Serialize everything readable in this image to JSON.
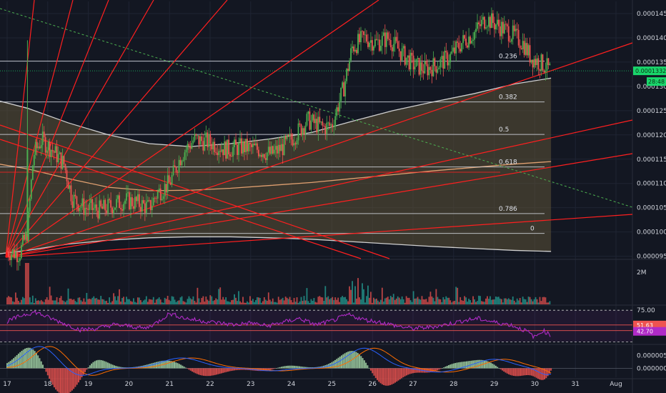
{
  "colors": {
    "background": "#131722",
    "grid": "#1f2433",
    "up": "#26a69a",
    "upBright": "#4caf50",
    "down": "#ef5350",
    "fib": "#d1d4dc",
    "fan": "#ff1f1f",
    "trend": "#4caf50",
    "maWhite": "#cfcfcf",
    "maOrange": "#e0a070",
    "fill": "#5c5236",
    "rsi": "#b02bc7",
    "macd": "#2962ff",
    "signal": "#ff6d00",
    "priceTag": "#19d66b"
  },
  "chart_data": [
    {
      "type": "candlestick",
      "panel": "price",
      "x_axis_labels": [
        "17",
        "18",
        "19",
        "20",
        "21",
        "22",
        "23",
        "24",
        "25",
        "26",
        "27",
        "28",
        "29",
        "30",
        "31",
        "Aug"
      ],
      "y_ticks": [
        "0.0001450",
        "0.0001400",
        "0.0001350",
        "0.0001300",
        "0.0001250",
        "0.0001200",
        "0.0001150",
        "0.0001100",
        "0.0001050",
        "0.0001000",
        "0.0000950"
      ],
      "ylim": [
        9.45e-05,
        0.0001475
      ],
      "price_path": [
        [
          17.0,
          9.6e-05
        ],
        [
          17.3,
          9.55e-05
        ],
        [
          17.5,
          0.0001
        ],
        [
          17.65,
          0.000116
        ],
        [
          17.85,
          0.000119
        ],
        [
          18.1,
          0.000117
        ],
        [
          18.4,
          0.000114
        ],
        [
          18.6,
          0.000107
        ],
        [
          18.9,
          0.000105
        ],
        [
          19.3,
          0.0001045
        ],
        [
          19.6,
          0.0001055
        ],
        [
          19.9,
          0.0001065
        ],
        [
          20.2,
          0.000106
        ],
        [
          20.5,
          0.000105
        ],
        [
          20.7,
          0.000108
        ],
        [
          21.0,
          0.00011
        ],
        [
          21.3,
          0.000116
        ],
        [
          21.6,
          0.000119
        ],
        [
          22.0,
          0.0001185
        ],
        [
          22.4,
          0.000117
        ],
        [
          22.8,
          0.0001175
        ],
        [
          23.2,
          0.000117
        ],
        [
          23.5,
          0.000116
        ],
        [
          23.8,
          0.0001175
        ],
        [
          24.1,
          0.00012
        ],
        [
          24.4,
          0.000123
        ],
        [
          24.8,
          0.0001215
        ],
        [
          25.0,
          0.000122
        ],
        [
          25.3,
          0.00013
        ],
        [
          25.5,
          0.000138
        ],
        [
          25.8,
          0.00014
        ],
        [
          26.1,
          0.000139
        ],
        [
          26.4,
          0.00014
        ],
        [
          26.7,
          0.000137
        ],
        [
          27.0,
          0.0001345
        ],
        [
          27.3,
          0.0001335
        ],
        [
          27.6,
          0.0001345
        ],
        [
          27.9,
          0.000136
        ],
        [
          28.2,
          0.000139
        ],
        [
          28.5,
          0.000141
        ],
        [
          28.8,
          0.000144
        ],
        [
          29.1,
          0.0001425
        ],
        [
          29.4,
          0.000141
        ],
        [
          29.7,
          0.000139
        ],
        [
          29.9,
          0.000136
        ],
        [
          30.2,
          0.0001345
        ],
        [
          30.4,
          0.0001332
        ]
      ],
      "last_price_label": "0.0001332",
      "countdown_label": "28:48",
      "fib_levels": [
        {
          "label": "0.236",
          "value": 0.0001352
        },
        {
          "label": "0.382",
          "value": 0.0001268
        },
        {
          "label": "0.5",
          "value": 0.0001201
        },
        {
          "label": "0.618",
          "value": 0.0001134
        },
        {
          "label": "0.786",
          "value": 0.0001038
        },
        {
          "label": "0",
          "value": 9.97e-05
        }
      ],
      "moving_averages": [
        {
          "color": "#cfcfcf",
          "points": [
            [
              16.8,
              0.000127
            ],
            [
              17.5,
              0.0001255
            ],
            [
              18.5,
              0.0001225
            ],
            [
              19.5,
              0.00012
            ],
            [
              20.5,
              0.0001182
            ],
            [
              21.5,
              0.0001176
            ],
            [
              22.5,
              0.0001182
            ],
            [
              23.5,
              0.0001192
            ],
            [
              24.5,
              0.0001205
            ],
            [
              25.5,
              0.0001228
            ],
            [
              26.5,
              0.000125
            ],
            [
              27.5,
              0.0001268
            ],
            [
              28.5,
              0.0001285
            ],
            [
              29.5,
              0.0001305
            ],
            [
              30.4,
              0.0001317
            ]
          ]
        },
        {
          "color": "#e0a070",
          "points": [
            [
              16.8,
              0.000114
            ],
            [
              17.5,
              0.000113
            ],
            [
              18.5,
              0.000111
            ],
            [
              19.5,
              0.0001092
            ],
            [
              20.5,
              0.0001085
            ],
            [
              21.5,
              0.0001086
            ],
            [
              22.5,
              0.000109
            ],
            [
              23.5,
              0.0001096
            ],
            [
              24.5,
              0.0001102
            ],
            [
              25.5,
              0.000111
            ],
            [
              26.5,
              0.0001118
            ],
            [
              27.5,
              0.0001126
            ],
            [
              28.5,
              0.0001133
            ],
            [
              29.5,
              0.000114
            ],
            [
              30.4,
              0.0001145
            ]
          ]
        },
        {
          "color": "#cfcfcf",
          "points": [
            [
              16.8,
              9.55e-05
            ],
            [
              17.5,
              9.62e-05
            ],
            [
              18.5,
              9.75e-05
            ],
            [
              19.5,
              9.83e-05
            ],
            [
              20.5,
              9.88e-05
            ],
            [
              21.5,
              9.9e-05
            ],
            [
              22.5,
              9.9e-05
            ],
            [
              23.5,
              9.88e-05
            ],
            [
              24.5,
              9.85e-05
            ],
            [
              25.5,
              9.8e-05
            ],
            [
              26.5,
              9.75e-05
            ],
            [
              27.5,
              9.7e-05
            ],
            [
              28.5,
              9.66e-05
            ],
            [
              29.5,
              9.62e-05
            ],
            [
              30.4,
              9.6e-05
            ]
          ]
        }
      ]
    },
    {
      "type": "bar",
      "panel": "volume",
      "y_ticks": [
        "2M"
      ]
    },
    {
      "type": "line",
      "panel": "rsi",
      "y_ticks": [
        "75.00",
        "51.63",
        "42.70"
      ],
      "ylim": [
        22,
        82
      ],
      "values_path": [
        [
          17.0,
          57
        ],
        [
          17.4,
          68
        ],
        [
          17.7,
          72
        ],
        [
          18.0,
          64
        ],
        [
          18.4,
          54
        ],
        [
          18.8,
          44
        ],
        [
          19.2,
          46
        ],
        [
          19.6,
          52
        ],
        [
          20.0,
          50
        ],
        [
          20.4,
          46
        ],
        [
          20.7,
          56
        ],
        [
          21.0,
          70
        ],
        [
          21.4,
          62
        ],
        [
          21.8,
          58
        ],
        [
          22.2,
          55
        ],
        [
          22.6,
          52
        ],
        [
          23.0,
          55
        ],
        [
          23.4,
          50
        ],
        [
          23.8,
          56
        ],
        [
          24.2,
          62
        ],
        [
          24.6,
          52
        ],
        [
          25.0,
          58
        ],
        [
          25.4,
          68
        ],
        [
          25.8,
          60
        ],
        [
          26.2,
          56
        ],
        [
          26.6,
          50
        ],
        [
          27.0,
          46
        ],
        [
          27.4,
          48
        ],
        [
          27.8,
          52
        ],
        [
          28.2,
          58
        ],
        [
          28.6,
          62
        ],
        [
          29.0,
          56
        ],
        [
          29.4,
          52
        ],
        [
          29.8,
          42
        ],
        [
          30.0,
          32
        ],
        [
          30.2,
          43
        ],
        [
          30.4,
          35
        ]
      ]
    },
    {
      "type": "line",
      "panel": "macd",
      "y_ticks": [
        "0.0000050",
        "0.0000000"
      ],
      "ylim": [
        -3.5e-06,
        9e-06
      ]
    }
  ]
}
